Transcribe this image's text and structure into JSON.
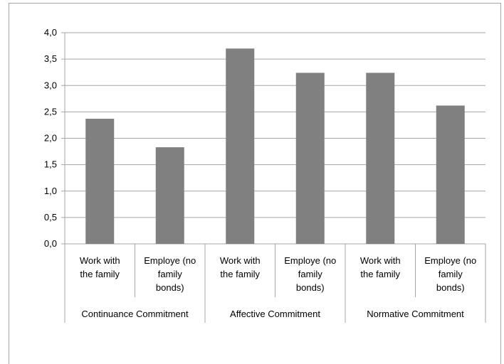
{
  "chart_data": {
    "type": "bar",
    "title": "",
    "xlabel": "",
    "ylabel": "",
    "ylim": [
      0,
      4
    ],
    "ytick_labels": [
      "0,0",
      "0,5",
      "1,0",
      "1,5",
      "2,0",
      "2,5",
      "3,0",
      "3,5",
      "4,0"
    ],
    "grid": true,
    "bar_color": "#808080",
    "categories": [
      [
        "Work with",
        "the family"
      ],
      [
        "Employe (no",
        "family",
        "bonds)"
      ],
      [
        "Work with",
        "the family"
      ],
      [
        "Employe (no",
        "family",
        "bonds)"
      ],
      [
        "Work with",
        "the family"
      ],
      [
        "Employe (no",
        "family",
        "bonds)"
      ]
    ],
    "groups": [
      "Continuance Commitment",
      "Affective Commitment",
      "Normative Commitment"
    ],
    "values": [
      2.37,
      1.83,
      3.7,
      3.24,
      3.24,
      2.62
    ]
  }
}
